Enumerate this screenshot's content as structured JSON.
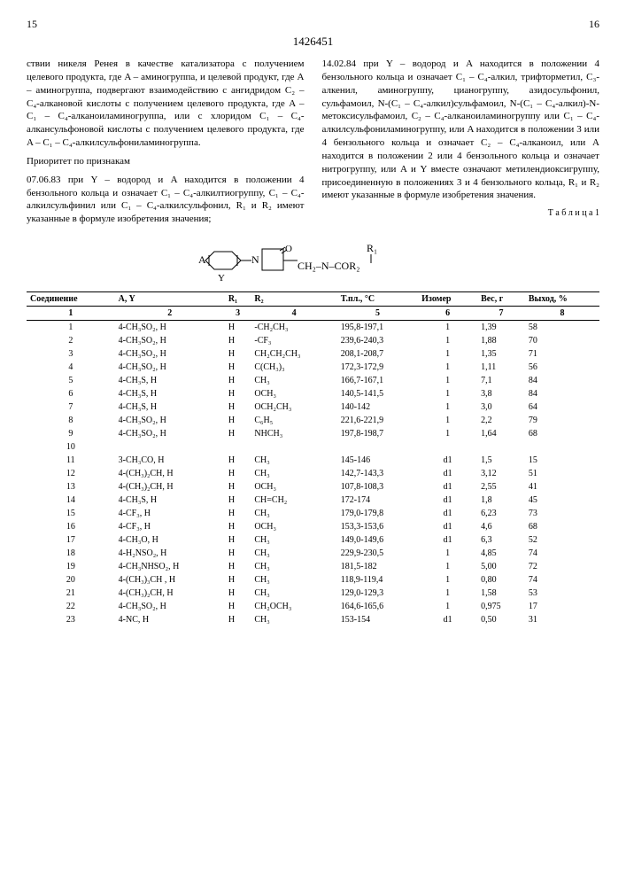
{
  "page_left": "15",
  "page_right": "16",
  "doc_number": "1426451",
  "col_left": [
    "ствии никеля Ренея в качестве катализатора с получением целевого продукта, где A – аминогруппа, и целевой продукт, где A – аминогруппа, подвергают взаимодействию с ангидридом C₂ – C₄-алкановой кислоты с получением целевого продукта, где A – C₁ – C₄-алканоиламиногруппа, или с хлоридом C₁ – C₄-алкансульфоновой кислоты с получением целевого продукта, где A – C₁ – C₄-алкилсульфониламиногруппа.",
    "Приоритет по признакам",
    "07.06.83 при Y – водород и A находится в положении 4 бензольного кольца и означает C₁ – C₄-алкилтиогруппу, C₁ – C₄-алкилсульфинил или C₁ – C₄-алкилсульфонил, R₁ и R₂ имеют указанные в формуле изобретения значения;"
  ],
  "col_right": [
    "14.02.84 при Y – водород и A находится в положении 4 бензольного кольца и означает C₁ – C₄-алкил, трифторметил, C₃-алкенил, аминогруппу, цианогруппу, азидосульфонил, сульфамоил, N-(C₁ – C₄-алкил)сульфамоил, N-(C₁ – C₄-алкил)-N-метоксисульфамоил, C₂ – C₄-алканоиламиногруппу или C₁ – C₄-алкилсульфониламиногруппу, или A находится в положении 3 или 4 бензольного кольца и означает C₂ – C₄-алканоил, или A находится в положении 2 или 4 бензольного кольца и означает нитрогруппу, или A и Y вместе означают метилендиоксигруппу, присоединенную в положениях 3 и 4 бензольного кольца, R₁ и R₂ имеют указанные в формуле изобретения значения."
  ],
  "table_label": "Т а б л и ц а 1",
  "headers": [
    "Соединение",
    "A, Y",
    "R₁",
    "R₂",
    "Т.пл., °C",
    "Изомер",
    "Вес, г",
    "Выход, %"
  ],
  "header_nums": [
    "1",
    "2",
    "3",
    "4",
    "5",
    "6",
    "7",
    "8"
  ],
  "rows": [
    [
      "1",
      "4-CH₃SO₂, H",
      "H",
      "-CH₂CH₃",
      "195,8-197,1",
      "1",
      "1,39",
      "58"
    ],
    [
      "2",
      "4-CH₃SO₂, H",
      "H",
      "-CF₃",
      "239,6-240,3",
      "1",
      "1,88",
      "70"
    ],
    [
      "3",
      "4-CH₃SO₂, H",
      "H",
      "CH₂CH₂CH₃",
      "208,1-208,7",
      "1",
      "1,35",
      "71"
    ],
    [
      "4",
      "4-CH₃SO₂, H",
      "H",
      "C(CH₃)₃",
      "172,3-172,9",
      "1",
      "1,11",
      "56"
    ],
    [
      "5",
      "4-CH₃S, H",
      "H",
      "CH₃",
      "166,7-167,1",
      "1",
      "7,1",
      "84"
    ],
    [
      "6",
      "4-CH₃S, H",
      "H",
      "OCH₃",
      "140,5-141,5",
      "1",
      "3,8",
      "84"
    ],
    [
      "7",
      "4-CH₃S, H",
      "H",
      "OCH₂CH₃",
      "140-142",
      "1",
      "3,0",
      "64"
    ],
    [
      "8",
      "4-CH₃SO₂, H",
      "H",
      "C₆H₅",
      "221,6-221,9",
      "1",
      "2,2",
      "79"
    ],
    [
      "9",
      "4-CH₃SO₂, H",
      "H",
      "NHCH₃",
      "197,8-198,7",
      "1",
      "1,64",
      "68"
    ],
    [
      "10",
      "",
      "",
      "",
      "",
      "",
      "",
      ""
    ],
    [
      "11",
      "3-CH₃CO, H",
      "H",
      "CH₃",
      "145-146",
      "d1",
      "1,5",
      "15"
    ],
    [
      "12",
      "4-(CH₃)₂CH, H",
      "H",
      "CH₃",
      "142,7-143,3",
      "d1",
      "3,12",
      "51"
    ],
    [
      "13",
      "4-(CH₃)₂CH, H",
      "H",
      "OCH₃",
      "107,8-108,3",
      "d1",
      "2,55",
      "41"
    ],
    [
      "14",
      "4-CH₃S, H",
      "H",
      "CH=CH₂",
      "172-174",
      "d1",
      "1,8",
      "45"
    ],
    [
      "15",
      "4-CF₃, H",
      "H",
      "CH₃",
      "179,0-179,8",
      "d1",
      "6,23",
      "73"
    ],
    [
      "16",
      "4-CF₃, H",
      "H",
      "OCH₃",
      "153,3-153,6",
      "d1",
      "4,6",
      "68"
    ],
    [
      "17",
      "4-CH₃O, H",
      "H",
      "CH₃",
      "149,0-149,6",
      "d1",
      "6,3",
      "52"
    ],
    [
      "18",
      "4-H₂NSO₂, H",
      "H",
      "CH₃",
      "229,9-230,5",
      "1",
      "4,85",
      "74"
    ],
    [
      "19",
      "4-CH₃NHSO₂, H",
      "H",
      "CH₃",
      "181,5-182",
      "1",
      "5,00",
      "72"
    ],
    [
      "20",
      "4-(CH₃)₃CH , H",
      "H",
      "CH₃",
      "118,9-119,4",
      "1",
      "0,80",
      "74"
    ],
    [
      "21",
      "4-(CH₃)₂CH, H",
      "H",
      "CH₃",
      "129,0-129,3",
      "1",
      "1,58",
      "53"
    ],
    [
      "22",
      "4-CH₃SO₂, H",
      "H",
      "CH₂OCH₃",
      "164,6-165,6",
      "1",
      "0,975",
      "17"
    ],
    [
      "23",
      "4-NC, H",
      "H",
      "CH₃",
      "153-154",
      "d1",
      "0,50",
      "31"
    ]
  ]
}
